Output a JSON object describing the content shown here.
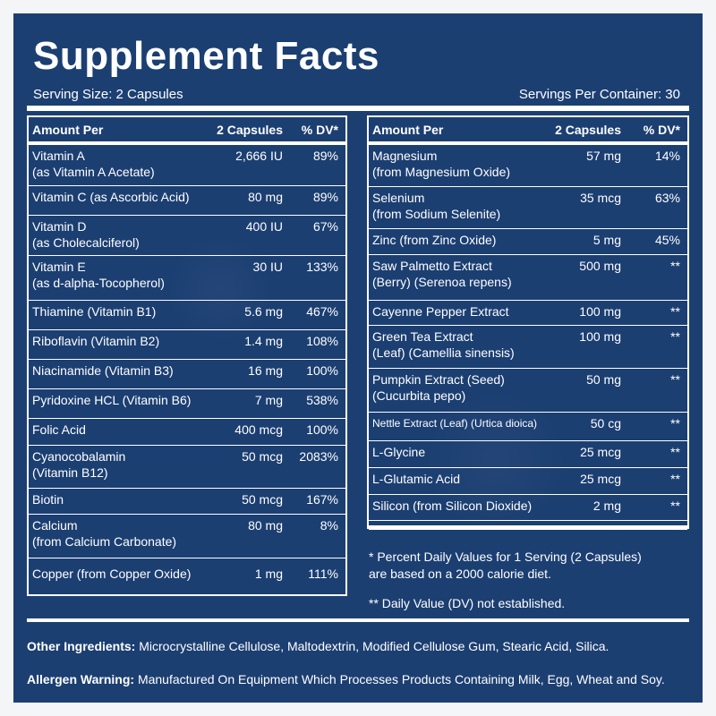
{
  "title": "Supplement Facts",
  "serving_size": "Serving Size: 2 Capsules",
  "servings_per_container": "Servings Per Container: 30",
  "headers": {
    "amount_per": "Amount Per",
    "capsules": "2 Capsules",
    "dv": "% DV*"
  },
  "left_rows": [
    {
      "name": "Vitamin A\n(as Vitamin A Acetate)",
      "amount": "2,666 IU",
      "dv": "89%"
    },
    {
      "name": "Vitamin C (as Ascorbic Acid)",
      "amount": "80 mg",
      "dv": "89%"
    },
    {
      "name": "Vitamin D\n(as Cholecalciferol)",
      "amount": "400 IU",
      "dv": "67%"
    },
    {
      "name": "Vitamin E\n(as d-alpha-Tocopherol)",
      "amount": "30 IU",
      "dv": "133%"
    },
    {
      "name": "Thiamine (Vitamin B1)",
      "amount": "5.6 mg",
      "dv": "467%"
    },
    {
      "name": "Riboflavin (Vitamin B2)",
      "amount": "1.4 mg",
      "dv": "108%"
    },
    {
      "name": "Niacinamide (Vitamin B3)",
      "amount": "16 mg",
      "dv": "100%"
    },
    {
      "name": "Pyridoxine HCL (Vitamin B6)",
      "amount": "7 mg",
      "dv": "538%"
    },
    {
      "name": "Folic Acid",
      "amount": "400 mcg",
      "dv": "100%"
    },
    {
      "name": "Cyanocobalamin\n(Vitamin B12)",
      "amount": "50 mcg",
      "dv": "2083%"
    },
    {
      "name": "Biotin",
      "amount": "50 mcg",
      "dv": "167%"
    },
    {
      "name": "Calcium\n(from Calcium Carbonate)",
      "amount": "80 mg",
      "dv": "8%"
    },
    {
      "name": "Copper (from Copper Oxide)",
      "amount": "1 mg",
      "dv": "111%"
    }
  ],
  "right_rows": [
    {
      "name": "Magnesium\n(from Magnesium Oxide)",
      "amount": "57 mg",
      "dv": "14%"
    },
    {
      "name": "Selenium\n(from Sodium Selenite)",
      "amount": "35 mcg",
      "dv": "63%"
    },
    {
      "name": "Zinc (from Zinc Oxide)",
      "amount": "5 mg",
      "dv": "45%"
    },
    {
      "name": "Saw Palmetto Extract\n(Berry) (Serenoa repens)",
      "amount": "500 mg",
      "dv": "**"
    },
    {
      "name": "Cayenne Pepper Extract",
      "amount": "100 mg",
      "dv": "**"
    },
    {
      "name": "Green Tea Extract\n(Leaf) (Camellia sinensis)",
      "amount": "100 mg",
      "dv": "**"
    },
    {
      "name": "Pumpkin Extract (Seed)\n(Cucurbita pepo)",
      "amount": "50 mg",
      "dv": "**"
    },
    {
      "name": "Nettle Extract (Leaf) (Urtica dioica)",
      "amount": "50 cg",
      "dv": "**"
    },
    {
      "name": "L-Glycine",
      "amount": "25 mcg",
      "dv": "**"
    },
    {
      "name": "L-Glutamic Acid",
      "amount": "25 mcg",
      "dv": "**"
    },
    {
      "name": "Silicon (from Silicon Dioxide)",
      "amount": "2 mg",
      "dv": "**"
    }
  ],
  "footnote_dv": "* Percent Daily Values for 1 Serving (2 Capsules)\nare based on a 2000 calorie diet.",
  "footnote_not_established": "** Daily Value (DV) not established.",
  "other_ingredients": {
    "label": "Other Ingredients:",
    "text": "Microcrystalline Cellulose, Maltodextrin, Modified Cellulose Gum, Stearic Acid, Silica."
  },
  "allergen_warning": {
    "label": "Allergen Warning:",
    "text": "Manufactured On Equipment Which Processes Products Containing Milk, Egg, Wheat and Soy."
  },
  "colors": {
    "background": "#1c3f72",
    "text": "#ffffff"
  }
}
